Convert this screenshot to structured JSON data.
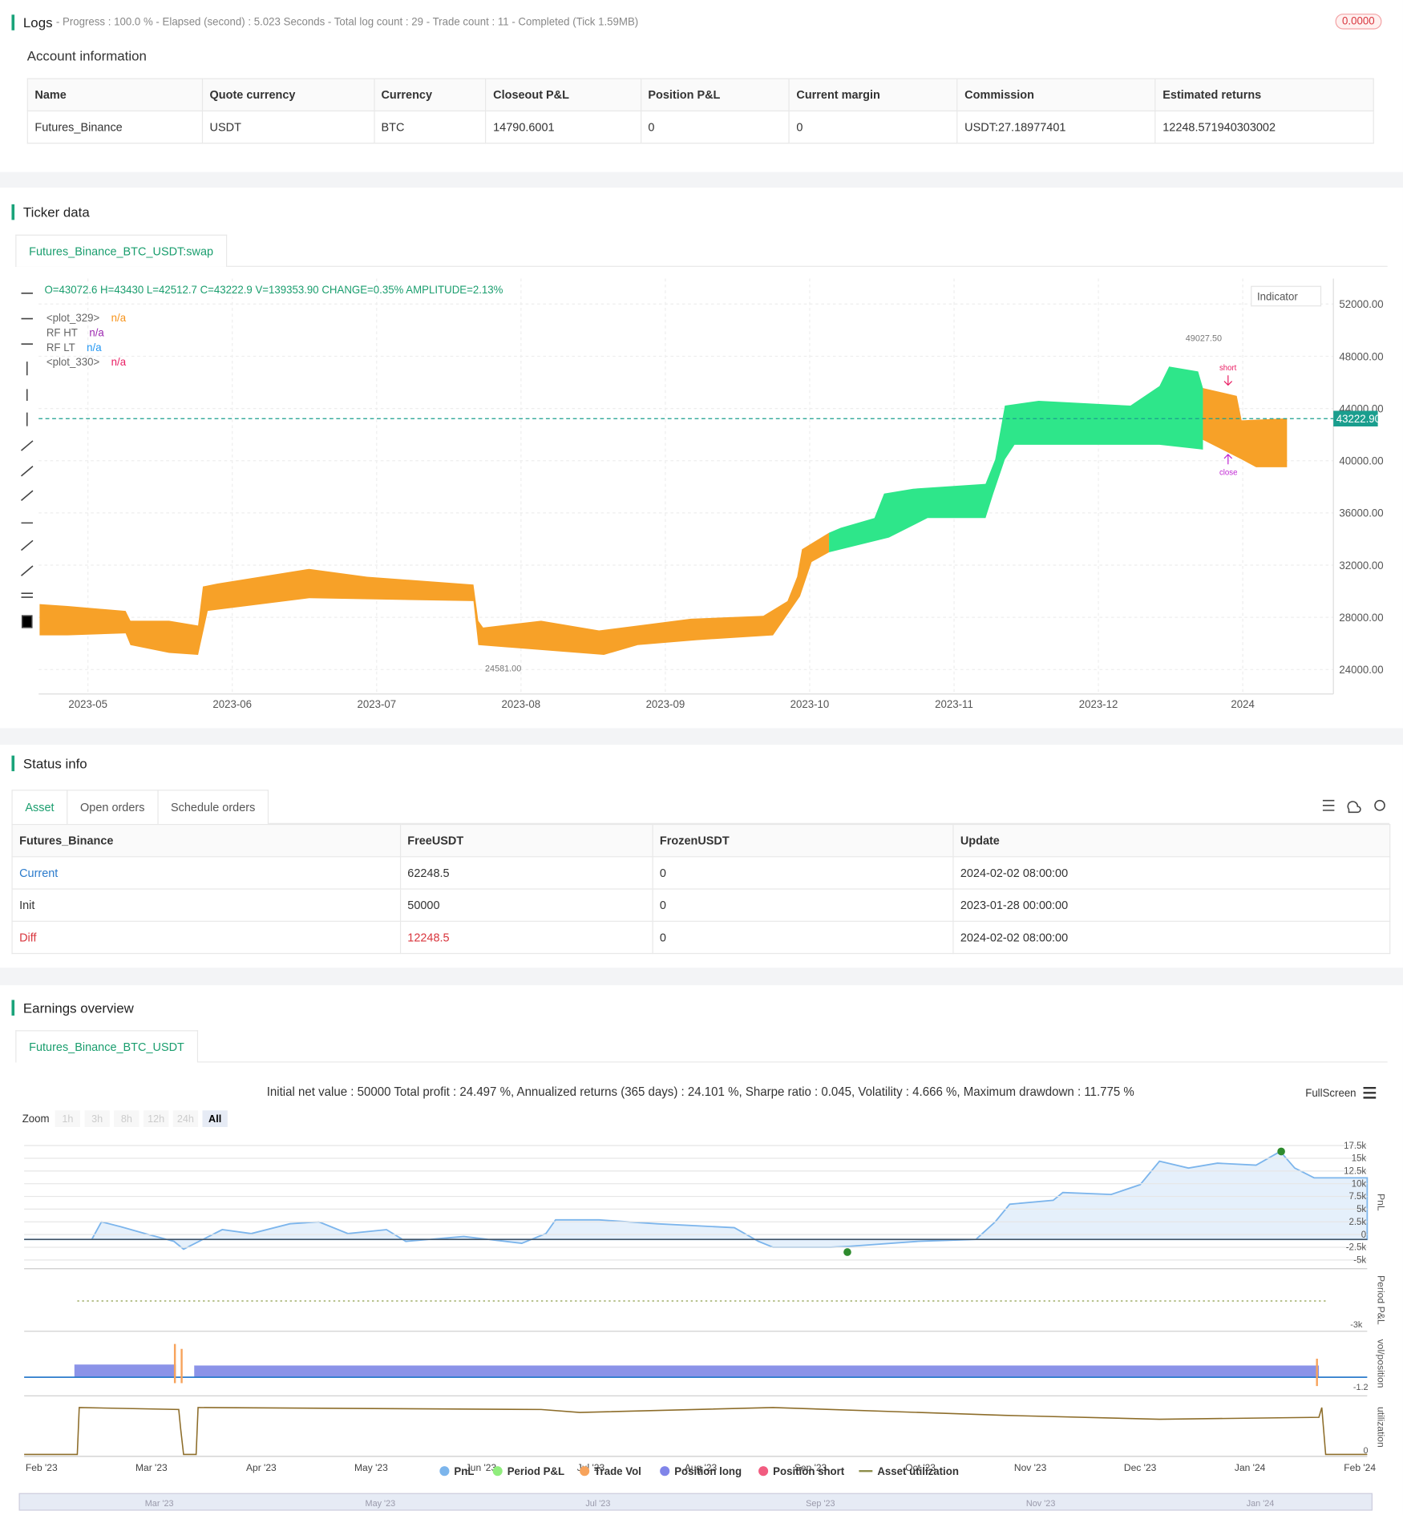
{
  "logs": {
    "title": "Logs",
    "progress": "- Progress : 100.0 % - Elapsed (second) : 5.023  Seconds - Total log count : 29 - Trade count : 11 - Completed (Tick 1.59MB)",
    "badge": "0.0000"
  },
  "account": {
    "title": "Account information",
    "columns": [
      "Name",
      "Quote currency",
      "Currency",
      "Closeout P&L",
      "Position P&L",
      "Current margin",
      "Commission",
      "Estimated returns"
    ],
    "rows": [
      [
        "Futures_Binance",
        "USDT",
        "BTC",
        "14790.6001",
        "0",
        "0",
        "USDT:27.18977401",
        "12248.571940303002"
      ]
    ]
  },
  "ticker": {
    "title": "Ticker data",
    "tab": "Futures_Binance_BTC_USDT:swap",
    "ohlc": "O=43072.6 H=43430 L=42512.7 C=43222.9 V=139353.90 CHANGE=0.35% AMPLITUDE=2.13%",
    "indicator_button": "Indicator",
    "legend": [
      {
        "name": "<plot_329>",
        "value": "n/a",
        "color": "#f7931a"
      },
      {
        "name": "RF HT",
        "value": "n/a",
        "color": "#9c27b0"
      },
      {
        "name": "RF LT",
        "value": "n/a",
        "color": "#2196f3"
      },
      {
        "name": "<plot_330>",
        "value": "n/a",
        "color": "#e91e63"
      }
    ],
    "chart": {
      "ylim": [
        22130,
        53950
      ],
      "yticks": [
        {
          "value": 52000,
          "label": "52000.00"
        },
        {
          "value": 48000,
          "label": "48000.00"
        },
        {
          "value": 44000,
          "label": "44000.00"
        },
        {
          "value": 40000,
          "label": "40000.00"
        },
        {
          "value": 36000,
          "label": "36000.00"
        },
        {
          "value": 32000,
          "label": "32000.00"
        },
        {
          "value": 28000,
          "label": "28000.00"
        },
        {
          "value": 24000,
          "label": "24000.00"
        }
      ],
      "xticks": [
        "2023-05",
        "2023-06",
        "2023-07",
        "2023-08",
        "2023-09",
        "2023-10",
        "2023-11",
        "2023-12",
        "2024"
      ],
      "last_price": {
        "value": 43222.9,
        "label": "43222.90"
      },
      "high_label": "49027.50",
      "low_label": "24581.00",
      "signals": [
        "short",
        "close"
      ]
    }
  },
  "status": {
    "title": "Status info",
    "tabs": [
      "Asset",
      "Open orders",
      "Schedule orders"
    ],
    "columns": [
      "Futures_Binance",
      "FreeUSDT",
      "FrozenUSDT",
      "Update"
    ],
    "rows": [
      [
        "Current",
        "62248.5",
        "0",
        "2024-02-02 08:00:00"
      ],
      [
        "Init",
        "50000",
        "0",
        "2023-01-28 00:00:00"
      ],
      [
        "Diff",
        "12248.5",
        "0",
        "2024-02-02 08:00:00"
      ]
    ]
  },
  "earnings": {
    "title": "Earnings overview",
    "tab": "Futures_Binance_BTC_USDT",
    "summary": "Initial net value : 50000 Total profit : 24.497 %, Annualized returns (365 days) : 24.101 %, Sharpe ratio : 0.045, Volatility : 4.666 %, Maximum drawdown : 11.775 %",
    "fullscreen": "FullScreen",
    "zoom": {
      "label": "Zoom",
      "buttons": [
        "1h",
        "3h",
        "8h",
        "12h",
        "24h",
        "All"
      ]
    },
    "pnl": {
      "ylim": [
        -6150,
        19230
      ],
      "yticks": [
        {
          "value": 17500,
          "label": "17.5k"
        },
        {
          "value": 15000,
          "label": "15k"
        },
        {
          "value": 12500,
          "label": "12.5k"
        },
        {
          "value": 10000,
          "label": "10k"
        },
        {
          "value": 7500,
          "label": "7.5k"
        },
        {
          "value": 5000,
          "label": "5k"
        },
        {
          "value": 2500,
          "label": "2.5k"
        },
        0,
        {
          "value": -2500,
          "label": "-2.5k"
        },
        {
          "value": -5000,
          "label": "-5k"
        }
      ]
    },
    "axis_titles": [
      "PnL",
      "Period P&L",
      "vol/position",
      "utilization"
    ],
    "sub_ticks": [
      "-3k",
      "-1.2",
      "0"
    ],
    "xticks": [
      "Feb '23",
      "Mar '23",
      "Apr '23",
      "May '23",
      "Jun '23",
      "Jul '23",
      "Aug '23",
      "Sep '23",
      "Oct '23",
      "Nov '23",
      "Dec '23",
      "Jan '24",
      "Feb '24"
    ],
    "legend": [
      {
        "name": "PnL",
        "color": "#7cb5ec"
      },
      {
        "name": "Period P&L",
        "color": "#90ed7d"
      },
      {
        "name": "Trade Vol",
        "color": "#f7a35c"
      },
      {
        "name": "Position long",
        "color": "#8085e9"
      },
      {
        "name": "Position short",
        "color": "#f15c80"
      },
      {
        "name": "Asset utilization",
        "color": "#8d8d4a"
      }
    ],
    "navigator": [
      "Mar '23",
      "May '23",
      "Jul '23",
      "Sep '23",
      "Nov '23",
      "Jan '24"
    ]
  }
}
